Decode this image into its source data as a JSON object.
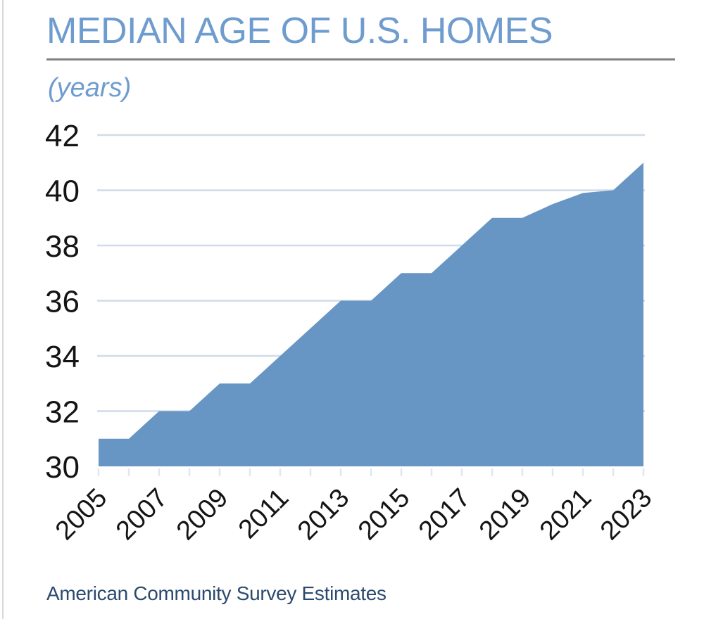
{
  "header": {
    "title": "MEDIAN AGE OF U.S. HOMES",
    "unit_label": "(years)"
  },
  "footer": {
    "source": "American Community Survey Estimates"
  },
  "colors": {
    "title_blue": "#6f9ccf",
    "area_fill": "#6795c4",
    "gridline": "#d0dbe9",
    "tick": "#dfe7f3",
    "axis_text": "#141414",
    "divider_gray": "#828282",
    "source_navy": "#2b4a6e",
    "page_edge": "#d8d8d8"
  },
  "chart_data": {
    "type": "area",
    "title": "MEDIAN AGE OF U.S. HOMES",
    "unit": "years",
    "x": [
      2005,
      2006,
      2007,
      2008,
      2009,
      2010,
      2011,
      2012,
      2013,
      2014,
      2015,
      2016,
      2017,
      2018,
      2019,
      2020,
      2021,
      2022,
      2023
    ],
    "series": [
      {
        "name": "Median age of U.S. homes (years)",
        "values": [
          31,
          31,
          32,
          32,
          33,
          33,
          34,
          35,
          36,
          36,
          37,
          37,
          38,
          39,
          39,
          39.5,
          39.9,
          40,
          41
        ]
      }
    ],
    "ylim": [
      30,
      42
    ],
    "ytick_step": 2,
    "ytick_labels": [
      "30",
      "32",
      "34",
      "36",
      "38",
      "40",
      "42"
    ],
    "xtick_label_years": [
      2005,
      2007,
      2009,
      2011,
      2013,
      2015,
      2017,
      2019,
      2021,
      2023
    ],
    "xtick_minor_every_year": true,
    "grid": true,
    "legend": false,
    "source": "American Community Survey Estimates"
  }
}
